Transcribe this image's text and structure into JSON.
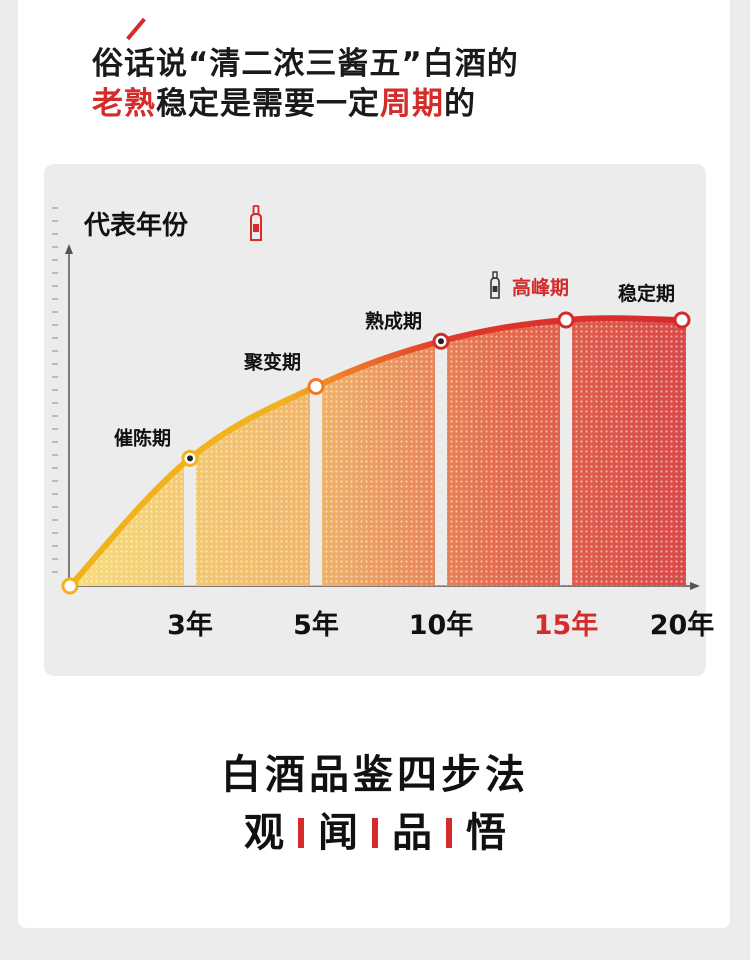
{
  "headline": {
    "line1": "俗话说“清二浓三酱五”白酒的",
    "line2_red1": "老熟",
    "line2_mid": "稳定是需要一定",
    "line2_red2": "周期",
    "line2_end": "的"
  },
  "chart_data": {
    "type": "area",
    "ylabel": "代表年份",
    "x_ticks": [
      "3年",
      "5年",
      "10年",
      "15年",
      "20年"
    ],
    "highlight_tick": "15年",
    "stages": [
      {
        "label": "催陈期",
        "x": 3
      },
      {
        "label": "聚变期",
        "x": 5
      },
      {
        "label": "熟成期",
        "x": 10
      },
      {
        "label": "高峰期",
        "x": 15
      },
      {
        "label": "稳定期",
        "x": 20
      }
    ],
    "highlight_stage": "高峰期",
    "curve": [
      {
        "x": 0,
        "y": 0
      },
      {
        "x": 3,
        "y": 0.48
      },
      {
        "x": 5,
        "y": 0.75
      },
      {
        "x": 10,
        "y": 0.92
      },
      {
        "x": 15,
        "y": 1.0
      },
      {
        "x": 20,
        "y": 1.0
      }
    ],
    "colors": {
      "early": "#f2b21c",
      "mid": "#f07a2a",
      "late": "#d42b2b"
    },
    "grid": false
  },
  "method": {
    "title": "白酒品鉴四步法",
    "steps": [
      "观",
      "闻",
      "品",
      "悟"
    ]
  }
}
